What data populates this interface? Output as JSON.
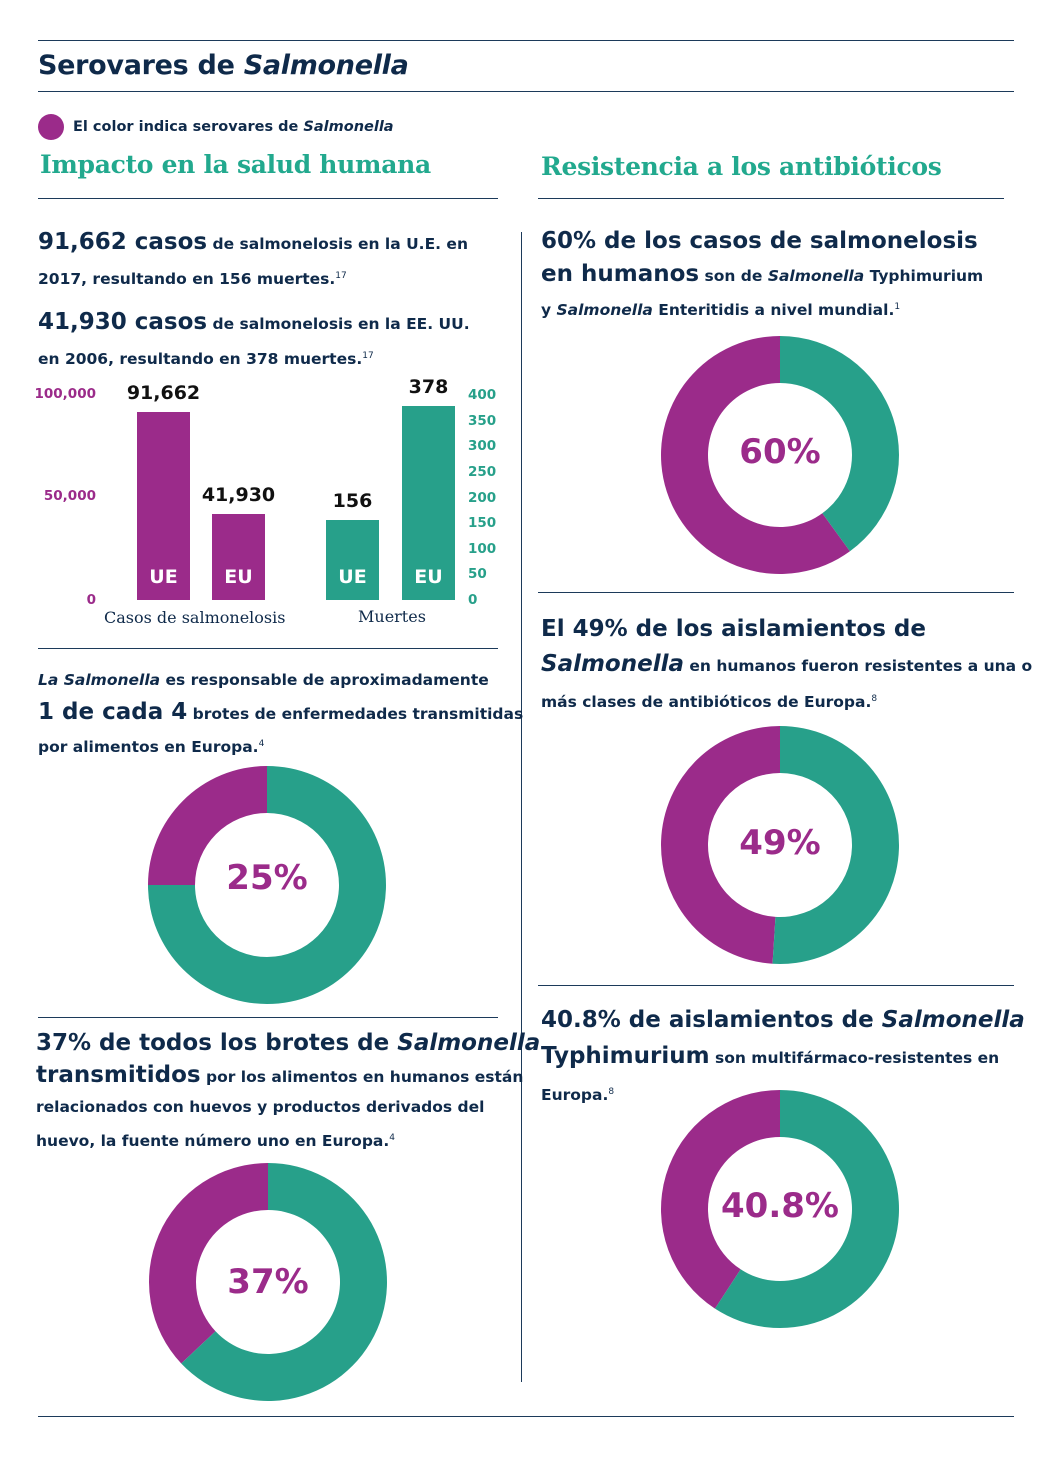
{
  "header": {
    "title_plain": "Serovares de ",
    "title_italic": "Salmonella",
    "legend_plain": "El color indica serovares de ",
    "legend_italic": "Salmonella"
  },
  "colors": {
    "purple": "#9b2b8a",
    "teal": "#27a08a",
    "navy": "#0f2a4a",
    "heading_green": "#22a98e"
  },
  "left": {
    "heading": "Impacto en la salud humana",
    "stat1": {
      "big": "91,662 casos",
      "text1": " de salmonelosis en la U.E. en",
      "text2": "2017, resultando en 156 muertes.",
      "ref": "17"
    },
    "stat2": {
      "big": "41,930 casos",
      "text1": " de salmonelosis en la EE. UU.",
      "text2": "en 2006, resultando en 378 muertes.",
      "ref": "17"
    },
    "stat3": {
      "italic": "La Salmonella",
      "text1": " es responsable de aproximadamente",
      "big": "1 de cada 4",
      "text2": "  brotes de enfermedades transmitidas",
      "text3": "por alimentos en Europa.",
      "ref": "4"
    },
    "stat4": {
      "big1": "37% de todos los brotes de ",
      "big_italic": "Salmonella",
      "big2": "transmitidos",
      "text1": " por los alimentos en humanos están",
      "text2": "relacionados con huevos y productos derivados del",
      "text3": "huevo, la fuente número uno en Europa.",
      "ref": "4"
    }
  },
  "right": {
    "heading": "Resistencia a los antibióticos",
    "stat1": {
      "big1": "60% de los casos de salmonelosis",
      "big2": "en humanos",
      "text1a": " son de ",
      "text1b": "Salmonella",
      "text1c": "  Typhimurium",
      "text2a": "y ",
      "text2b": "Salmonella",
      "text2c": " Enteritidis a nivel mundial.",
      "ref": "1"
    },
    "stat2": {
      "big1": "El 49% de los aislamientos de",
      "big_italic": "Salmonella",
      "text1": " en humanos fueron resistentes a una o",
      "text2": "más clases de antibióticos de Europa.",
      "ref": "8"
    },
    "stat3": {
      "big1": "40.8% de aislamientos de ",
      "big_italic": "Salmonella",
      "big2": "Typhimurium",
      "text1": "   son multifármaco-resistentes en",
      "text2": "Europa.",
      "ref": "8"
    }
  },
  "chart_data": [
    {
      "type": "bar",
      "groups": [
        {
          "name": "Casos de salmonelosis",
          "axis": "left",
          "bars": [
            {
              "label": "UE",
              "value": 91662,
              "value_label": "91,662"
            },
            {
              "label": "EU",
              "value": 41930,
              "value_label": "41,930"
            }
          ]
        },
        {
          "name": "Muertes",
          "axis": "right",
          "bars": [
            {
              "label": "UE",
              "value": 156,
              "value_label": "156"
            },
            {
              "label": "EU",
              "value": 378,
              "value_label": "378"
            }
          ]
        }
      ],
      "left_axis": {
        "ticks": [
          "100,000",
          "50,000",
          "0"
        ],
        "ylim": [
          0,
          100000
        ]
      },
      "right_axis": {
        "ticks": [
          "400",
          "350",
          "300",
          "250",
          "200",
          "150",
          "100",
          "50",
          "0"
        ],
        "ylim": [
          0,
          400
        ]
      }
    },
    {
      "type": "pie",
      "variant": "donut",
      "id": "d25",
      "label": "25%",
      "values": [
        25,
        75
      ],
      "colors": [
        "purple",
        "teal"
      ]
    },
    {
      "type": "pie",
      "variant": "donut",
      "id": "d37",
      "label": "37%",
      "values": [
        37,
        63
      ],
      "colors": [
        "purple",
        "teal"
      ]
    },
    {
      "type": "pie",
      "variant": "donut",
      "id": "d60",
      "label": "60%",
      "values": [
        60,
        40
      ],
      "colors": [
        "purple",
        "teal"
      ]
    },
    {
      "type": "pie",
      "variant": "donut",
      "id": "d49",
      "label": "49%",
      "values": [
        49,
        51
      ],
      "colors": [
        "purple",
        "teal"
      ]
    },
    {
      "type": "pie",
      "variant": "donut",
      "id": "d408",
      "label": "40.8%",
      "values": [
        40.8,
        59.2
      ],
      "colors": [
        "purple",
        "teal"
      ]
    }
  ]
}
